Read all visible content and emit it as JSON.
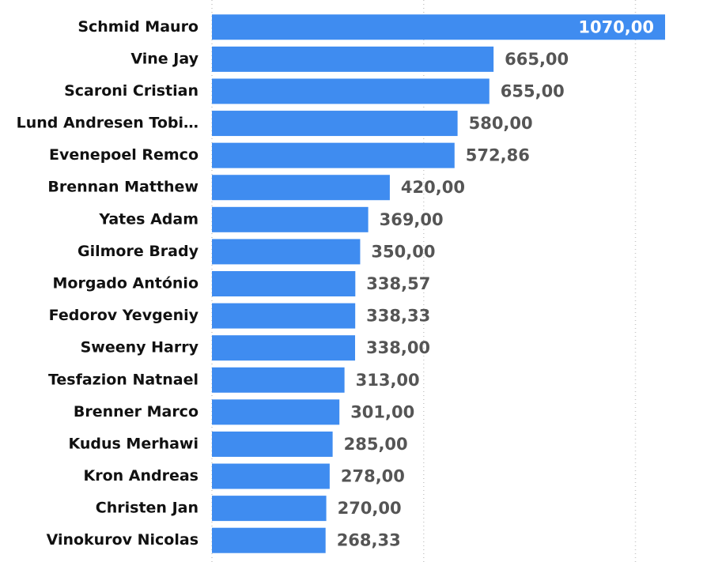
{
  "chart_data": {
    "type": "bar",
    "orientation": "horizontal",
    "categories": [
      "Schmid Mauro",
      "Vine Jay",
      "Scaroni Cristian",
      "Lund Andresen Tobi…",
      "Evenepoel Remco",
      "Brennan Matthew",
      "Yates Adam",
      "Gilmore Brady",
      "Morgado António",
      "Fedorov Yevgeniy",
      "Sweeny Harry",
      "Tesfazion Natnael",
      "Brenner Marco",
      "Kudus Merhawi",
      "Kron Andreas",
      "Christen Jan",
      "Vinokurov Nicolas"
    ],
    "values": [
      1070,
      665,
      655,
      580,
      572.86,
      420,
      369,
      350,
      338.57,
      338.33,
      338,
      313,
      301,
      285,
      278,
      270,
      268.33
    ],
    "value_labels": [
      "1070,00",
      "665,00",
      "655,00",
      "580,00",
      "572,86",
      "420,00",
      "369,00",
      "350,00",
      "338,57",
      "338,33",
      "338,00",
      "313,00",
      "301,00",
      "285,00",
      "278,00",
      "270,00",
      "268,33"
    ],
    "color": "#3f8cf0",
    "xlim": [
      0,
      1070
    ],
    "xticks": [
      0,
      500,
      1000
    ],
    "grid": true
  }
}
